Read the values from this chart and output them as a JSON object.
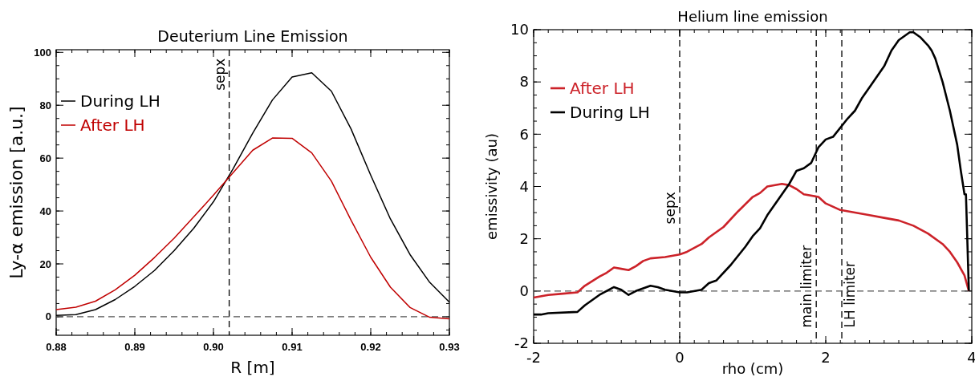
{
  "chart_data": [
    {
      "type": "line",
      "title": "Deuterium Line Emission",
      "xlabel": "R [m]",
      "ylabel": "Ly-α emission [a.u.]",
      "xlim": [
        0.88,
        0.93
      ],
      "ylim": [
        -7,
        101
      ],
      "xticks": [
        0.88,
        0.89,
        {
          "value": 0.9,
          "label": "0.90"
        },
        0.91,
        0.92,
        0.93
      ],
      "yticks": [
        0,
        20,
        40,
        60,
        80,
        100
      ],
      "grid": false,
      "legend": "top left",
      "marker": "none",
      "line_style": "solid",
      "x": [
        0.88,
        0.8825,
        0.885,
        0.8875,
        0.89,
        0.8925,
        0.895,
        0.8975,
        0.9,
        0.9025,
        0.905,
        0.9075,
        0.91,
        0.9125,
        0.915,
        0.9175,
        0.92,
        0.9225,
        0.925,
        0.9275,
        0.93
      ],
      "series": [
        {
          "name": "During LH",
          "color": "#000000",
          "values": [
            0.5,
            0.8,
            2.7,
            6.5,
            11.5,
            17.5,
            25,
            33.5,
            43.5,
            56,
            69.5,
            82,
            90.7,
            92.3,
            85.3,
            71,
            53.5,
            37,
            23.5,
            13,
            5.5
          ]
        },
        {
          "name": "After LH",
          "color": "#c00000",
          "values": [
            2.7,
            3.6,
            5.9,
            10.2,
            15.7,
            22.4,
            29.7,
            37.8,
            46,
            54.5,
            63,
            67.6,
            67.5,
            62,
            51.3,
            36.5,
            22.5,
            11.2,
            3.5,
            -0.2,
            -0.8
          ]
        }
      ],
      "ref_lines": [
        {
          "axis": "x",
          "value": 0.902,
          "label": "sepx",
          "color": "#000000",
          "line_style": "dashed"
        },
        {
          "axis": "y",
          "value": 0,
          "label": null,
          "color": "#555555",
          "line_style": "dashed"
        }
      ]
    },
    {
      "type": "line",
      "title": "Helium line emission",
      "xlabel": "rho (cm)",
      "ylabel": "emissivity (au)",
      "xlim": [
        -2,
        4
      ],
      "ylim": [
        -2,
        10
      ],
      "xticks": [
        -2,
        0,
        2,
        4
      ],
      "yticks": [
        -2,
        0,
        2,
        4,
        6,
        8,
        10
      ],
      "grid": false,
      "legend": "top left",
      "marker": "none",
      "line_style": "solid",
      "series": [
        {
          "name": "After LH",
          "color": "#cc2229",
          "x": [
            -2,
            -1.8,
            -1.6,
            -1.4,
            -1.3,
            -1.1,
            -1,
            -0.9,
            -0.8,
            -0.7,
            -0.6,
            -0.5,
            -0.4,
            -0.2,
            0,
            0.1,
            0.3,
            0.4,
            0.5,
            0.6,
            0.8,
            1,
            1.1,
            1.2,
            1.4,
            1.5,
            1.6,
            1.7,
            1.9,
            2,
            2.2,
            2.4,
            2.6,
            2.8,
            3,
            3.2,
            3.4,
            3.6,
            3.7,
            3.8,
            3.9,
            3.96
          ],
          "values": [
            -0.25,
            -0.15,
            -0.1,
            -0.05,
            0.2,
            0.55,
            0.7,
            0.9,
            0.85,
            0.8,
            0.95,
            1.15,
            1.25,
            1.3,
            1.4,
            1.5,
            1.8,
            2.05,
            2.25,
            2.45,
            3.05,
            3.6,
            3.75,
            4,
            4.1,
            4.05,
            3.9,
            3.7,
            3.6,
            3.35,
            3.1,
            3,
            2.9,
            2.8,
            2.7,
            2.5,
            2.2,
            1.8,
            1.5,
            1.1,
            0.6,
            0
          ]
        },
        {
          "name": "During LH",
          "color": "#000000",
          "x": [
            -2,
            -1.9,
            -1.8,
            -1.4,
            -1.3,
            -1.1,
            -0.9,
            -0.8,
            -0.7,
            -0.6,
            -0.4,
            -0.3,
            -0.2,
            0,
            0.1,
            0.3,
            0.4,
            0.5,
            0.7,
            0.9,
            1,
            1.1,
            1.2,
            1.3,
            1.5,
            1.6,
            1.7,
            1.8,
            1.9,
            2,
            2.1,
            2.3,
            2.4,
            2.5,
            2.6,
            2.8,
            2.9,
            3,
            3.1,
            3.15,
            3.2,
            3.3,
            3.4,
            3.45,
            3.5,
            3.6,
            3.7,
            3.8,
            3.85,
            3.9,
            3.92,
            3.96
          ],
          "values": [
            -0.9,
            -0.9,
            -0.85,
            -0.8,
            -0.55,
            -0.15,
            0.15,
            0.05,
            -0.15,
            0,
            0.2,
            0.15,
            0.05,
            -0.05,
            -0.05,
            0.05,
            0.3,
            0.4,
            1,
            1.7,
            2.1,
            2.4,
            2.9,
            3.3,
            4.1,
            4.6,
            4.7,
            4.9,
            5.5,
            5.8,
            5.9,
            6.6,
            6.9,
            7.4,
            7.8,
            8.6,
            9.2,
            9.6,
            9.8,
            9.9,
            9.9,
            9.7,
            9.4,
            9.2,
            8.9,
            8,
            6.9,
            5.6,
            4.6,
            3.7,
            3.7,
            0
          ]
        }
      ],
      "ref_lines": [
        {
          "axis": "x",
          "value": 0,
          "label": "sepx",
          "color": "#000000",
          "line_style": "dashed"
        },
        {
          "axis": "x",
          "value": 1.87,
          "label": "main limiter",
          "color": "#000000",
          "line_style": "dashed"
        },
        {
          "axis": "x",
          "value": 2.22,
          "label": "LH limiter",
          "color": "#000000",
          "line_style": "dashed"
        },
        {
          "axis": "y",
          "value": 0,
          "label": null,
          "color": "#555555",
          "line_style": "dashed"
        }
      ]
    }
  ]
}
